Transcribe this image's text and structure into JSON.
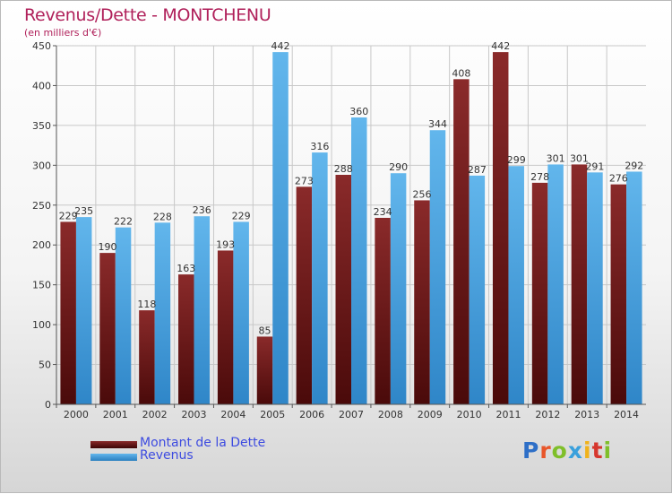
{
  "title": "Revenus/Dette - MONTCHENU",
  "subtitle": "(en milliers d'€)",
  "logo": {
    "text": "Proxiti",
    "letter_colors": [
      "#2e6fc7",
      "#e8562a",
      "#7fbf2a",
      "#3aa0dc",
      "#f0b21b",
      "#d6372e",
      "#7fbf2a"
    ]
  },
  "colors": {
    "dette": "#7b1f1f",
    "dette_dark": "#3d0606",
    "revenus": "#5aafe8",
    "revenus_dark": "#2a7fc0",
    "axis": "#555555",
    "grid": "#c8c8c8"
  },
  "legend": [
    {
      "label": "Montant de la Dette",
      "series": 0
    },
    {
      "label": "Revenus",
      "series": 1
    }
  ],
  "chart_data": {
    "type": "bar",
    "title": "Revenus/Dette - MONTCHENU",
    "ylabel": "(en milliers d'€)",
    "xlabel": "",
    "ylim": [
      0,
      450
    ],
    "yticks": [
      0,
      50,
      100,
      150,
      200,
      250,
      300,
      350,
      400,
      450
    ],
    "grid": true,
    "categories": [
      "2000",
      "2001",
      "2002",
      "2003",
      "2004",
      "2005",
      "2006",
      "2007",
      "2008",
      "2009",
      "2010",
      "2011",
      "2012",
      "2013",
      "2014"
    ],
    "series": [
      {
        "name": "Montant de la Dette",
        "values": [
          229,
          190,
          118,
          163,
          193,
          85,
          273,
          288,
          234,
          256,
          408,
          442,
          278,
          301,
          276
        ]
      },
      {
        "name": "Revenus",
        "values": [
          235,
          222,
          228,
          236,
          229,
          442,
          316,
          360,
          290,
          344,
          287,
          299,
          301,
          291,
          292
        ]
      }
    ],
    "legend_position": "bottom-left"
  }
}
